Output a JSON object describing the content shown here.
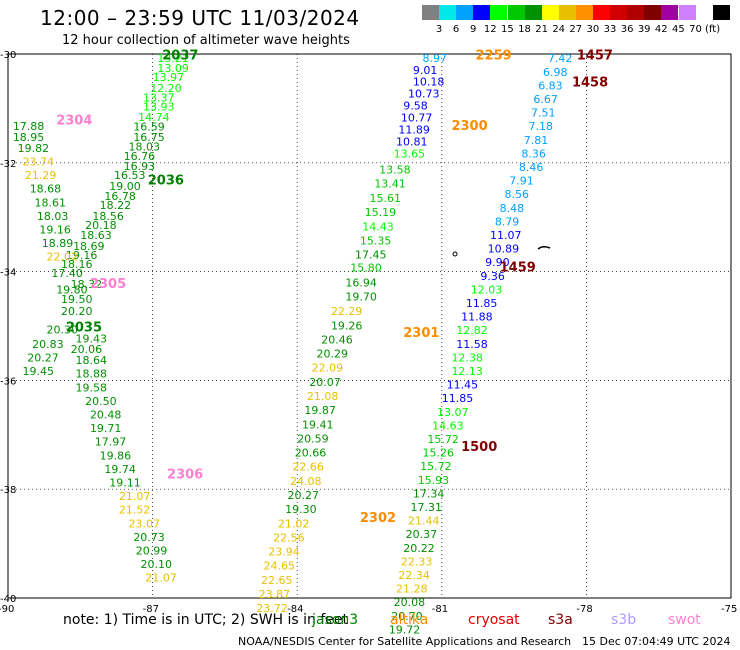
{
  "title": "12:00 – 23:59 UTC 11/03/2024",
  "subtitle": "12 hour collection of altimeter wave heights",
  "legend": {
    "colors": [
      "#808080",
      "#00e8e8",
      "#00a0ff",
      "#0000ff",
      "#00ff00",
      "#00c800",
      "#009000",
      "#ffff00",
      "#e8c000",
      "#ff9000",
      "#ff0000",
      "#d00000",
      "#b00000",
      "#800000",
      "#a000a0",
      "#d080ff",
      "#ffffff",
      "#000000"
    ],
    "labels": [
      "3",
      "6",
      "9",
      "12",
      "15",
      "18",
      "21",
      "24",
      "27",
      "30",
      "33",
      "36",
      "39",
      "42",
      "45",
      "70",
      "(ft)"
    ]
  },
  "axes": {
    "lon_labels": [
      "-90",
      "-87",
      "-84",
      "-81",
      "-78",
      "-75"
    ],
    "lat_labels": [
      "-30",
      "-32",
      "-34",
      "-36",
      "-38",
      "-40"
    ]
  },
  "note": "note:  1) Time is in UTC; 2) SWH is in feet",
  "satellites": [
    {
      "name": "jason3",
      "color": "#008000"
    },
    {
      "name": "altika",
      "color": "#ff8c00"
    },
    {
      "name": "cryosat",
      "color": "#e00000"
    },
    {
      "name": "s3a",
      "color": "#800000"
    },
    {
      "name": "s3b",
      "color": "#b09aff"
    },
    {
      "name": "swot",
      "color": "#ff80d0"
    }
  ],
  "credit": "NOAA/NESDIS Center for Satellite Applications and Research",
  "timestamp": "15 Dec 07:04:49 UTC 2024",
  "chart_data": {
    "type": "scatter",
    "title": "12:00 – 23:59 UTC 11/03/2024",
    "xlim": [
      -90,
      -75
    ],
    "ylim": [
      -40,
      -30
    ],
    "times": [
      {
        "text": "2037",
        "lon": -86.8,
        "lat": -30.1,
        "color": "#008000"
      },
      {
        "text": "2036",
        "lon": -87.1,
        "lat": -32.4,
        "color": "#008000"
      },
      {
        "text": "2035",
        "lon": -88.8,
        "lat": -35.1,
        "color": "#008000"
      },
      {
        "text": "2304",
        "lon": -89.0,
        "lat": -31.3,
        "color": "#ff80d0"
      },
      {
        "text": "2305",
        "lon": -88.3,
        "lat": -34.3,
        "color": "#ff80d0"
      },
      {
        "text": "2306",
        "lon": -86.7,
        "lat": -37.8,
        "color": "#ff80d0"
      },
      {
        "text": "2259",
        "lon": -80.3,
        "lat": -30.1,
        "color": "#ff8c00"
      },
      {
        "text": "2300",
        "lon": -80.8,
        "lat": -31.4,
        "color": "#ff8c00"
      },
      {
        "text": "2301",
        "lon": -81.8,
        "lat": -35.2,
        "color": "#ff8c00"
      },
      {
        "text": "2302",
        "lon": -82.7,
        "lat": -38.6,
        "color": "#ff8c00"
      },
      {
        "text": "1457",
        "lon": -78.2,
        "lat": -30.1,
        "color": "#800000"
      },
      {
        "text": "1458",
        "lon": -78.3,
        "lat": -30.6,
        "color": "#800000"
      },
      {
        "text": "1459",
        "lon": -79.8,
        "lat": -34.0,
        "color": "#800000"
      },
      {
        "text": "1500",
        "lon": -80.6,
        "lat": -37.3,
        "color": "#800000"
      }
    ],
    "points": [
      {
        "text": "13.21",
        "lon": -86.9,
        "lat": -30.15,
        "color": "#00ff00"
      },
      {
        "text": "13.09",
        "lon": -86.9,
        "lat": -30.33,
        "color": "#00ff00"
      },
      {
        "text": "13.97",
        "lon": -87.0,
        "lat": -30.5,
        "color": "#00ff00"
      },
      {
        "text": "12.20",
        "lon": -87.05,
        "lat": -30.7,
        "color": "#00ff00"
      },
      {
        "text": "13.37",
        "lon": -87.2,
        "lat": -30.87,
        "color": "#00ff00"
      },
      {
        "text": "13.93",
        "lon": -87.2,
        "lat": -31.04,
        "color": "#00ff00"
      },
      {
        "text": "14.74",
        "lon": -87.3,
        "lat": -31.23,
        "color": "#00ff00"
      },
      {
        "text": "16.59",
        "lon": -87.4,
        "lat": -31.41,
        "color": "#009000"
      },
      {
        "text": "16.75",
        "lon": -87.4,
        "lat": -31.6,
        "color": "#009000"
      },
      {
        "text": "18.03",
        "lon": -87.5,
        "lat": -31.77,
        "color": "#009000"
      },
      {
        "text": "16.76",
        "lon": -87.6,
        "lat": -31.95,
        "color": "#009000"
      },
      {
        "text": "16.93",
        "lon": -87.6,
        "lat": -32.13,
        "color": "#009000"
      },
      {
        "text": "16.53",
        "lon": -87.8,
        "lat": -32.3,
        "color": "#009000"
      },
      {
        "text": "19.00",
        "lon": -87.9,
        "lat": -32.5,
        "color": "#009000"
      },
      {
        "text": "16.78",
        "lon": -88.0,
        "lat": -32.68,
        "color": "#009000"
      },
      {
        "text": "18.22",
        "lon": -88.1,
        "lat": -32.85,
        "color": "#009000"
      },
      {
        "text": "18.56",
        "lon": -88.25,
        "lat": -33.05,
        "color": "#009000"
      },
      {
        "text": "20.18",
        "lon": -88.4,
        "lat": -33.22,
        "color": "#009000"
      },
      {
        "text": "18.63",
        "lon": -88.5,
        "lat": -33.4,
        "color": "#009000"
      },
      {
        "text": "18.69",
        "lon": -88.65,
        "lat": -33.6,
        "color": "#009000"
      },
      {
        "text": "19.16",
        "lon": -88.8,
        "lat": -33.77,
        "color": "#009000"
      },
      {
        "text": "17.40",
        "lon": -89.1,
        "lat": -34.1,
        "color": "#009000"
      },
      {
        "text": "18.32",
        "lon": -88.7,
        "lat": -34.3,
        "color": "#009000"
      },
      {
        "text": "19.80",
        "lon": -89.0,
        "lat": -34.4,
        "color": "#009000"
      },
      {
        "text": "19.50",
        "lon": -88.9,
        "lat": -34.58,
        "color": "#009000"
      },
      {
        "text": "20.20",
        "lon": -88.9,
        "lat": -34.8,
        "color": "#009000"
      },
      {
        "text": "20.30",
        "lon": -89.2,
        "lat": -35.14,
        "color": "#009000"
      },
      {
        "text": "19.43",
        "lon": -88.6,
        "lat": -35.3,
        "color": "#009000"
      },
      {
        "text": "20.06",
        "lon": -88.7,
        "lat": -35.5,
        "color": "#009000"
      },
      {
        "text": "18.64",
        "lon": -88.6,
        "lat": -35.7,
        "color": "#009000"
      },
      {
        "text": "18.88",
        "lon": -88.6,
        "lat": -35.95,
        "color": "#009000"
      },
      {
        "text": "19.58",
        "lon": -88.6,
        "lat": -36.2,
        "color": "#009000"
      },
      {
        "text": "20.50",
        "lon": -88.4,
        "lat": -36.45,
        "color": "#009000"
      },
      {
        "text": "20.48",
        "lon": -88.3,
        "lat": -36.7,
        "color": "#009000"
      },
      {
        "text": "19.71",
        "lon": -88.3,
        "lat": -36.95,
        "color": "#009000"
      },
      {
        "text": "17.97",
        "lon": -88.2,
        "lat": -37.2,
        "color": "#009000"
      },
      {
        "text": "19.86",
        "lon": -88.1,
        "lat": -37.45,
        "color": "#009000"
      },
      {
        "text": "19.74",
        "lon": -88.0,
        "lat": -37.7,
        "color": "#009000"
      },
      {
        "text": "19.11",
        "lon": -87.9,
        "lat": -37.95,
        "color": "#009000"
      },
      {
        "text": "21.07",
        "lon": -87.7,
        "lat": -38.2,
        "color": "#e8c000"
      },
      {
        "text": "21.52",
        "lon": -87.7,
        "lat": -38.45,
        "color": "#e8c000"
      },
      {
        "text": "23.07",
        "lon": -87.5,
        "lat": -38.7,
        "color": "#e8c000"
      },
      {
        "text": "20.73",
        "lon": -87.4,
        "lat": -38.95,
        "color": "#009000"
      },
      {
        "text": "20.99",
        "lon": -87.35,
        "lat": -39.2,
        "color": "#009000"
      },
      {
        "text": "20.10",
        "lon": -87.25,
        "lat": -39.45,
        "color": "#009000"
      },
      {
        "text": "21.07",
        "lon": -87.15,
        "lat": -39.7,
        "color": "#e8c000"
      },
      {
        "text": "17.88",
        "lon": -89.9,
        "lat": -31.4,
        "color": "#009000"
      },
      {
        "text": "18.95",
        "lon": -89.9,
        "lat": -31.6,
        "color": "#009000"
      },
      {
        "text": "19.82",
        "lon": -89.8,
        "lat": -31.8,
        "color": "#009000"
      },
      {
        "text": "23.74",
        "lon": -89.7,
        "lat": -32.05,
        "color": "#e8c000"
      },
      {
        "text": "21.29",
        "lon": -89.65,
        "lat": -32.3,
        "color": "#e8c000"
      },
      {
        "text": "18.68",
        "lon": -89.55,
        "lat": -32.55,
        "color": "#009000"
      },
      {
        "text": "18.61",
        "lon": -89.45,
        "lat": -32.8,
        "color": "#009000"
      },
      {
        "text": "18.03",
        "lon": -89.4,
        "lat": -33.05,
        "color": "#009000"
      },
      {
        "text": "19.16",
        "lon": -89.35,
        "lat": -33.3,
        "color": "#009000"
      },
      {
        "text": "18.89",
        "lon": -89.3,
        "lat": -33.55,
        "color": "#009000"
      },
      {
        "text": "22.02",
        "lon": -89.2,
        "lat": -33.8,
        "color": "#e8c000"
      },
      {
        "text": "18.16",
        "lon": -88.9,
        "lat": -33.93,
        "color": "#009000"
      },
      {
        "text": "20.83",
        "lon": -89.5,
        "lat": -35.4,
        "color": "#009000"
      },
      {
        "text": "20.27",
        "lon": -89.6,
        "lat": -35.65,
        "color": "#009000"
      },
      {
        "text": "19.45",
        "lon": -89.7,
        "lat": -35.9,
        "color": "#009000"
      },
      {
        "text": "8.97",
        "lon": -81.4,
        "lat": -30.15,
        "color": "#00a0ff"
      },
      {
        "text": "9.01",
        "lon": -81.6,
        "lat": -30.37,
        "color": "#0000ff"
      },
      {
        "text": "10.18",
        "lon": -81.6,
        "lat": -30.58,
        "color": "#0000ff"
      },
      {
        "text": "10.73",
        "lon": -81.7,
        "lat": -30.8,
        "color": "#0000ff"
      },
      {
        "text": "9.58",
        "lon": -81.8,
        "lat": -31.02,
        "color": "#0000ff"
      },
      {
        "text": "10.77",
        "lon": -81.85,
        "lat": -31.24,
        "color": "#0000ff"
      },
      {
        "text": "11.89",
        "lon": -81.9,
        "lat": -31.46,
        "color": "#0000ff"
      },
      {
        "text": "10.81",
        "lon": -81.95,
        "lat": -31.68,
        "color": "#0000ff"
      },
      {
        "text": "13.65",
        "lon": -82.0,
        "lat": -31.9,
        "color": "#00ff00"
      },
      {
        "text": "13.58",
        "lon": -82.3,
        "lat": -32.2,
        "color": "#00c800"
      },
      {
        "text": "13.41",
        "lon": -82.4,
        "lat": -32.45,
        "color": "#00c800"
      },
      {
        "text": "15.61",
        "lon": -82.5,
        "lat": -32.72,
        "color": "#00c800"
      },
      {
        "text": "15.19",
        "lon": -82.6,
        "lat": -32.98,
        "color": "#00c800"
      },
      {
        "text": "14.43",
        "lon": -82.65,
        "lat": -33.24,
        "color": "#00ff00"
      },
      {
        "text": "15.35",
        "lon": -82.7,
        "lat": -33.5,
        "color": "#00c800"
      },
      {
        "text": "17.45",
        "lon": -82.8,
        "lat": -33.76,
        "color": "#009000"
      },
      {
        "text": "15.80",
        "lon": -82.9,
        "lat": -34.0,
        "color": "#00c800"
      },
      {
        "text": "16.94",
        "lon": -83.0,
        "lat": -34.27,
        "color": "#009000"
      },
      {
        "text": "19.70",
        "lon": -83.0,
        "lat": -34.53,
        "color": "#009000"
      },
      {
        "text": "22.29",
        "lon": -83.3,
        "lat": -34.8,
        "color": "#e8c000"
      },
      {
        "text": "19.26",
        "lon": -83.3,
        "lat": -35.06,
        "color": "#009000"
      },
      {
        "text": "20.46",
        "lon": -83.5,
        "lat": -35.32,
        "color": "#009000"
      },
      {
        "text": "20.29",
        "lon": -83.6,
        "lat": -35.58,
        "color": "#009000"
      },
      {
        "text": "22.09",
        "lon": -83.7,
        "lat": -35.84,
        "color": "#e8c000"
      },
      {
        "text": "20.07",
        "lon": -83.75,
        "lat": -36.1,
        "color": "#009000"
      },
      {
        "text": "21.08",
        "lon": -83.8,
        "lat": -36.36,
        "color": "#e8c000"
      },
      {
        "text": "19.87",
        "lon": -83.85,
        "lat": -36.62,
        "color": "#009000"
      },
      {
        "text": "19.41",
        "lon": -83.9,
        "lat": -36.88,
        "color": "#009000"
      },
      {
        "text": "20.59",
        "lon": -84.0,
        "lat": -37.14,
        "color": "#009000"
      },
      {
        "text": "20.66",
        "lon": -84.05,
        "lat": -37.4,
        "color": "#009000"
      },
      {
        "text": "22.66",
        "lon": -84.1,
        "lat": -37.66,
        "color": "#e8c000"
      },
      {
        "text": "24.08",
        "lon": -84.15,
        "lat": -37.92,
        "color": "#e8c000"
      },
      {
        "text": "20.27",
        "lon": -84.2,
        "lat": -38.18,
        "color": "#009000"
      },
      {
        "text": "19.30",
        "lon": -84.25,
        "lat": -38.44,
        "color": "#009000"
      },
      {
        "text": "21.02",
        "lon": -84.4,
        "lat": -38.7,
        "color": "#e8c000"
      },
      {
        "text": "22.56",
        "lon": -84.5,
        "lat": -38.96,
        "color": "#e8c000"
      },
      {
        "text": "23.94",
        "lon": -84.6,
        "lat": -39.22,
        "color": "#e8c000"
      },
      {
        "text": "24.65",
        "lon": -84.7,
        "lat": -39.48,
        "color": "#e8c000"
      },
      {
        "text": "22.65",
        "lon": -84.75,
        "lat": -39.74,
        "color": "#e8c000"
      },
      {
        "text": "23.87",
        "lon": -84.8,
        "lat": -40.0,
        "color": "#e8c000"
      },
      {
        "text": "23.72",
        "lon": -84.85,
        "lat": -40.26,
        "color": "#e8c000"
      },
      {
        "text": "7.42",
        "lon": -78.8,
        "lat": -30.15,
        "color": "#00a0ff"
      },
      {
        "text": "6.98",
        "lon": -78.9,
        "lat": -30.4,
        "color": "#00a0ff"
      },
      {
        "text": "6.83",
        "lon": -79.0,
        "lat": -30.65,
        "color": "#00a0ff"
      },
      {
        "text": "6.67",
        "lon": -79.1,
        "lat": -30.9,
        "color": "#00a0ff"
      },
      {
        "text": "7.51",
        "lon": -79.15,
        "lat": -31.15,
        "color": "#00a0ff"
      },
      {
        "text": "7.18",
        "lon": -79.2,
        "lat": -31.4,
        "color": "#00a0ff"
      },
      {
        "text": "7.81",
        "lon": -79.3,
        "lat": -31.65,
        "color": "#00a0ff"
      },
      {
        "text": "8.36",
        "lon": -79.35,
        "lat": -31.9,
        "color": "#00a0ff"
      },
      {
        "text": "8.46",
        "lon": -79.4,
        "lat": -32.15,
        "color": "#00a0ff"
      },
      {
        "text": "7.91",
        "lon": -79.6,
        "lat": -32.4,
        "color": "#00a0ff"
      },
      {
        "text": "8.56",
        "lon": -79.7,
        "lat": -32.65,
        "color": "#00a0ff"
      },
      {
        "text": "8.48",
        "lon": -79.8,
        "lat": -32.9,
        "color": "#00a0ff"
      },
      {
        "text": "8.79",
        "lon": -79.9,
        "lat": -33.15,
        "color": "#00a0ff"
      },
      {
        "text": "11.07",
        "lon": -80.0,
        "lat": -33.4,
        "color": "#0000ff"
      },
      {
        "text": "10.89",
        "lon": -80.05,
        "lat": -33.65,
        "color": "#0000ff"
      },
      {
        "text": "9.90",
        "lon": -80.1,
        "lat": -33.9,
        "color": "#0000ff"
      },
      {
        "text": "9.36",
        "lon": -80.2,
        "lat": -34.15,
        "color": "#0000ff"
      },
      {
        "text": "12.03",
        "lon": -80.4,
        "lat": -34.4,
        "color": "#00ff00"
      },
      {
        "text": "11.85",
        "lon": -80.5,
        "lat": -34.65,
        "color": "#0000ff"
      },
      {
        "text": "11.88",
        "lon": -80.6,
        "lat": -34.9,
        "color": "#0000ff"
      },
      {
        "text": "12.82",
        "lon": -80.7,
        "lat": -35.15,
        "color": "#00ff00"
      },
      {
        "text": "11.58",
        "lon": -80.7,
        "lat": -35.4,
        "color": "#0000ff"
      },
      {
        "text": "12.38",
        "lon": -80.8,
        "lat": -35.65,
        "color": "#00ff00"
      },
      {
        "text": "12.13",
        "lon": -80.8,
        "lat": -35.9,
        "color": "#00ff00"
      },
      {
        "text": "11.45",
        "lon": -80.9,
        "lat": -36.15,
        "color": "#0000ff"
      },
      {
        "text": "11.85",
        "lon": -81.0,
        "lat": -36.4,
        "color": "#0000ff"
      },
      {
        "text": "13.07",
        "lon": -81.1,
        "lat": -36.65,
        "color": "#00ff00"
      },
      {
        "text": "14.63",
        "lon": -81.2,
        "lat": -36.9,
        "color": "#00ff00"
      },
      {
        "text": "15.72",
        "lon": -81.3,
        "lat": -37.15,
        "color": "#00c800"
      },
      {
        "text": "15.26",
        "lon": -81.4,
        "lat": -37.4,
        "color": "#00c800"
      },
      {
        "text": "15.72",
        "lon": -81.45,
        "lat": -37.65,
        "color": "#00c800"
      },
      {
        "text": "15.93",
        "lon": -81.5,
        "lat": -37.9,
        "color": "#00c800"
      },
      {
        "text": "17.34",
        "lon": -81.6,
        "lat": -38.15,
        "color": "#009000"
      },
      {
        "text": "17.31",
        "lon": -81.65,
        "lat": -38.4,
        "color": "#009000"
      },
      {
        "text": "21.44",
        "lon": -81.7,
        "lat": -38.65,
        "color": "#e8c000"
      },
      {
        "text": "20.37",
        "lon": -81.75,
        "lat": -38.9,
        "color": "#009000"
      },
      {
        "text": "20.22",
        "lon": -81.8,
        "lat": -39.15,
        "color": "#009000"
      },
      {
        "text": "22.33",
        "lon": -81.85,
        "lat": -39.4,
        "color": "#e8c000"
      },
      {
        "text": "22.34",
        "lon": -81.9,
        "lat": -39.65,
        "color": "#e8c000"
      },
      {
        "text": "21.28",
        "lon": -81.95,
        "lat": -39.9,
        "color": "#e8c000"
      },
      {
        "text": "20.08",
        "lon": -82.0,
        "lat": -40.15,
        "color": "#009000"
      },
      {
        "text": "20.70",
        "lon": -82.05,
        "lat": -40.4,
        "color": "#009000"
      },
      {
        "text": "19.72",
        "lon": -82.1,
        "lat": -40.65,
        "color": "#009000"
      }
    ]
  }
}
